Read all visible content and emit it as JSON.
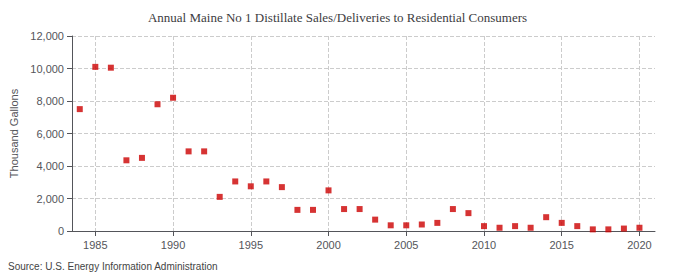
{
  "chart_data": {
    "type": "scatter",
    "title": "Annual Maine No 1 Distillate Sales/Deliveries to Residential Consumers",
    "ylabel": "Thousand Gallons",
    "annotations": [
      "Source: U.S. Energy Information Administration"
    ],
    "x": [
      1984,
      1985,
      1986,
      1987,
      1988,
      1989,
      1990,
      1991,
      1992,
      1993,
      1994,
      1995,
      1996,
      1997,
      1998,
      1999,
      2000,
      2001,
      2002,
      2003,
      2004,
      2005,
      2006,
      2007,
      2008,
      2009,
      2010,
      2011,
      2012,
      2013,
      2014,
      2015,
      2016,
      2017,
      2018,
      2019,
      2020
    ],
    "values": [
      7500,
      10100,
      10050,
      4350,
      4500,
      7800,
      8200,
      4900,
      4900,
      2100,
      3050,
      2750,
      3050,
      2700,
      1300,
      1300,
      2500,
      1350,
      1350,
      700,
      350,
      350,
      400,
      500,
      1350,
      1100,
      300,
      200,
      300,
      200,
      850,
      500,
      300,
      100,
      100,
      150,
      200
    ],
    "color": "#cc0000",
    "marker": "square",
    "xlim": [
      1983.5,
      2021
    ],
    "xticks": [
      1985,
      1990,
      1995,
      2000,
      2005,
      2010,
      2015,
      2020
    ],
    "ylim": [
      0,
      12000
    ],
    "yticks": [
      0,
      {
        "value": 2000,
        "label": "2,000"
      },
      {
        "value": 4000,
        "label": "4,000"
      },
      {
        "value": 6000,
        "label": "6,000"
      },
      {
        "value": 8000,
        "label": "8,000"
      },
      {
        "value": 10000,
        "label": "10,000"
      },
      {
        "value": 12000,
        "label": "12,000"
      }
    ],
    "grid": true
  }
}
